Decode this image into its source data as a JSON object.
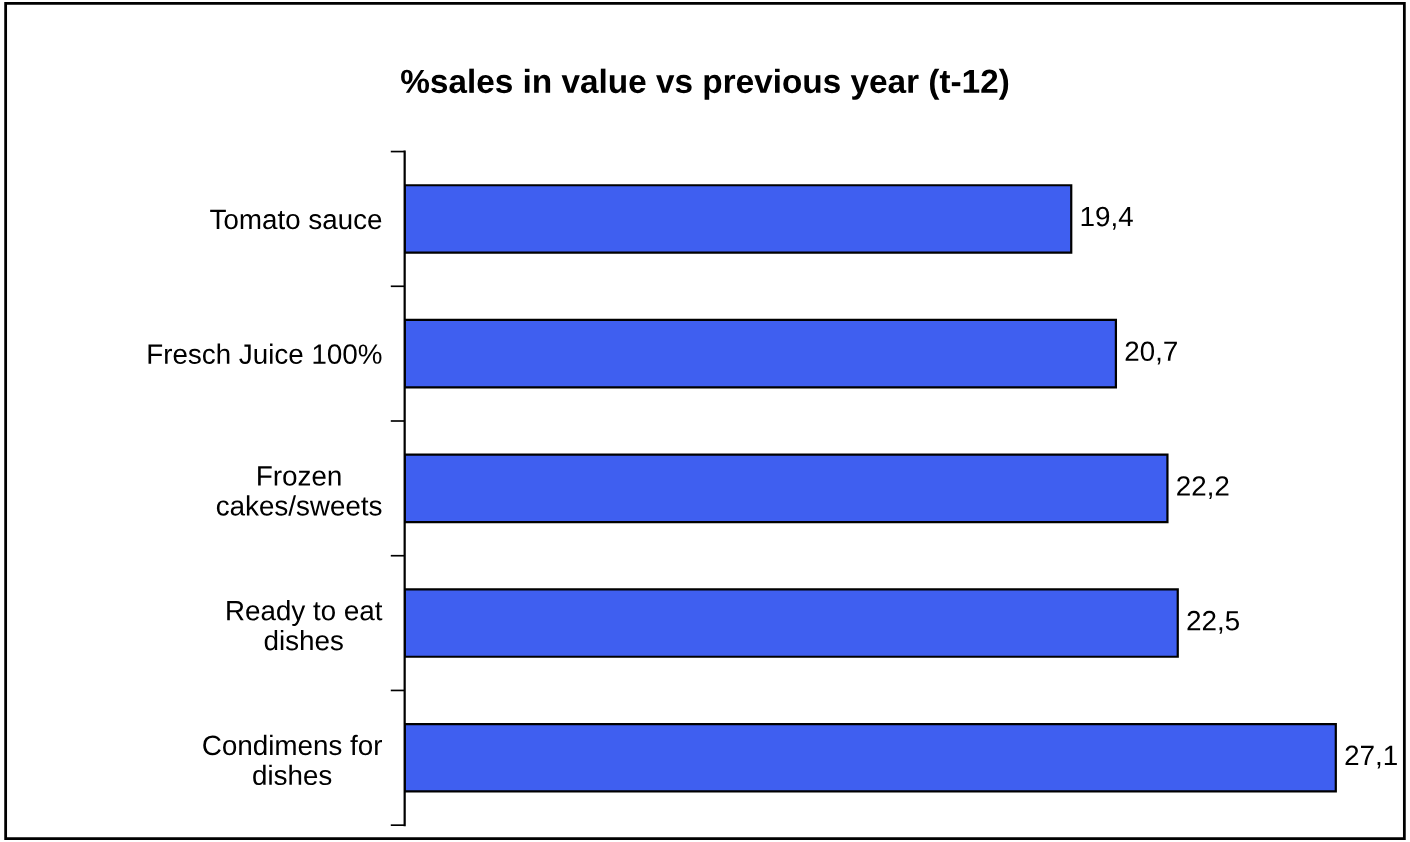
{
  "chart_data": {
    "type": "bar",
    "orientation": "horizontal",
    "title": "%sales in value vs previous year (t-12)",
    "categories": [
      "Tomato sauce",
      "Fresch Juice 100%",
      "Frozen\ncakes/sweets",
      "Ready to eat\ndishes",
      "Condimens for\ndishes"
    ],
    "values": [
      19.4,
      20.7,
      22.2,
      22.5,
      27.1
    ],
    "value_labels": [
      "19,4",
      "20,7",
      "22,2",
      "22,5",
      "27,1"
    ],
    "color": "#3f5ff0",
    "grid": false,
    "legend": false
  }
}
